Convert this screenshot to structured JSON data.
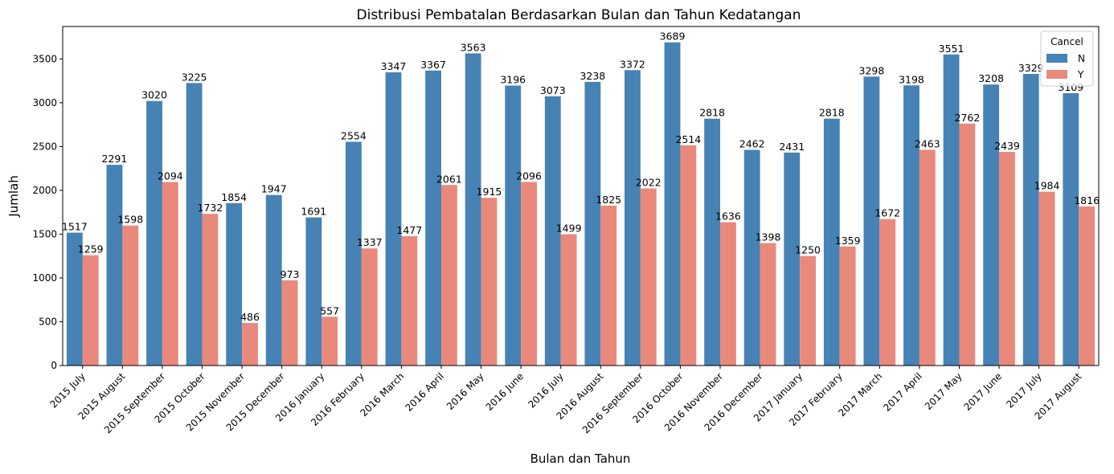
{
  "chart_data": {
    "type": "bar",
    "title": "Distribusi Pembatalan Berdasarkan Bulan dan Tahun Kedatangan",
    "xlabel": "Bulan dan Tahun",
    "ylabel": "Jumlah",
    "ylim": [
      0,
      3870
    ],
    "yticks": [
      0,
      500,
      1000,
      1500,
      2000,
      2500,
      3000,
      3500
    ],
    "grid": false,
    "legend": {
      "title": "Cancel",
      "position": "top-right"
    },
    "categories": [
      "2015 July",
      "2015 August",
      "2015 September",
      "2015 October",
      "2015 November",
      "2015 December",
      "2016 January",
      "2016 February",
      "2016 March",
      "2016 April",
      "2016 May",
      "2016 June",
      "2016 July",
      "2016 August",
      "2016 September",
      "2016 October",
      "2016 November",
      "2016 December",
      "2017 January",
      "2017 February",
      "2017 March",
      "2017 April",
      "2017 May",
      "2017 June",
      "2017 July",
      "2017 August"
    ],
    "series": [
      {
        "name": "N",
        "color": "#4682b4",
        "values": [
          1517,
          2291,
          3020,
          3225,
          1854,
          1947,
          1691,
          2554,
          3347,
          3367,
          3563,
          3196,
          3073,
          3238,
          3372,
          3689,
          2818,
          2462,
          2431,
          2818,
          3298,
          3198,
          3551,
          3208,
          3329,
          3109
        ]
      },
      {
        "name": "Y",
        "color": "#e9897b",
        "values": [
          1259,
          1598,
          2094,
          1732,
          486,
          973,
          557,
          1337,
          1477,
          2061,
          1915,
          2096,
          1499,
          1825,
          2022,
          2514,
          1636,
          1398,
          1250,
          1359,
          1672,
          2463,
          2762,
          2439,
          1984,
          1816
        ]
      }
    ]
  }
}
